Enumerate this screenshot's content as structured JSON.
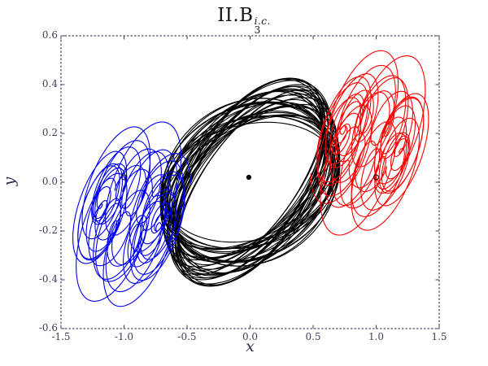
{
  "title": {
    "main": "II.B",
    "subscript": "3",
    "superscript": "i.c."
  },
  "chart_data": {
    "type": "line",
    "title": "II.B_3^{i.c.}",
    "xlabel": "x",
    "ylabel": "y",
    "xlim": [
      -1.5,
      1.5
    ],
    "ylim": [
      -0.6,
      0.6
    ],
    "xticks": [
      -1.5,
      -1.0,
      -0.5,
      0.0,
      0.5,
      1.0,
      1.5
    ],
    "xtick_labels": [
      "-1.5",
      "-1.0",
      "-0.5",
      "0.0",
      "0.5",
      "1.0",
      "1.5"
    ],
    "yticks": [
      -0.6,
      -0.4,
      -0.2,
      0.0,
      0.2,
      0.4,
      0.6
    ],
    "ytick_labels": [
      "-0.6",
      "-0.4",
      "-0.2",
      "0.0",
      "0.2",
      "0.4",
      "0.6"
    ],
    "grid": false,
    "legend": "none",
    "frame_style": "dashed",
    "frame_color": "#22223a",
    "tick_color": "#3f3f5c",
    "series": [
      {
        "name": "body2-trajectory-black",
        "color": "#000000",
        "line_width": 1.1,
        "pattern": "precessing-ellipse",
        "center": [
          0.0,
          0.0
        ],
        "loops": 40,
        "alpha": {
          "base": 0.29,
          "amp": 0.21,
          "freq": 0.381,
          "phase": 0.7
        },
        "semi_major": {
          "base": 0.67,
          "amp": 0.05,
          "freq": 0.618,
          "phase": 0.5
        },
        "semi_minor": {
          "base": 0.29,
          "amp": 0.05,
          "freq": 0.271,
          "phase": 2.1
        },
        "extent": {
          "x": [
            -0.69,
            0.68
          ],
          "y": [
            -0.34,
            0.35
          ]
        }
      },
      {
        "name": "body1-trajectory-blue",
        "color": "#0000ee",
        "line_width": 1.1,
        "pattern": "loop-rosette",
        "center": [
          -0.95,
          -0.13
        ],
        "mirror": false,
        "guide_radius": [
          0.26,
          0.15
        ],
        "loop_base": 0.13,
        "loop_mods": [
          {
            "amp": 0.075,
            "freq": 0.29,
            "phase": 1.3
          },
          {
            "amp": 0.04,
            "freq": 1.13,
            "phase": 0.4
          }
        ],
        "freq_ratio": 6.77,
        "slow_cycles": 6,
        "loop_phase": 0.6,
        "extent": {
          "x": [
            -1.44,
            -0.47
          ],
          "y": [
            -0.49,
            0.16
          ]
        }
      },
      {
        "name": "body3-trajectory-red",
        "color": "#ff0000",
        "line_width": 1.1,
        "pattern": "loop-rosette",
        "center": [
          0.96,
          0.16
        ],
        "mirror": true,
        "guide_radius": [
          0.26,
          0.15
        ],
        "loop_base": 0.13,
        "loop_mods": [
          {
            "amp": 0.075,
            "freq": 0.29,
            "phase": 1.3
          },
          {
            "amp": 0.04,
            "freq": 1.13,
            "phase": 0.4
          }
        ],
        "freq_ratio": 6.77,
        "slow_cycles": 6,
        "loop_phase": 0.6,
        "extent": {
          "x": [
            0.56,
            1.37
          ],
          "y": [
            -0.15,
            0.5
          ]
        }
      }
    ],
    "markers": [
      {
        "shape": "circle-open",
        "at": [
          -1.0,
          0.02
        ],
        "radius_px": 3,
        "color": "#000000"
      },
      {
        "shape": "circle-filled",
        "at": [
          -0.01,
          0.02
        ],
        "radius_px": 2.6,
        "color": "#000000"
      },
      {
        "shape": "circle-open",
        "at": [
          1.0,
          0.02
        ],
        "radius_px": 3,
        "color": "#000000"
      }
    ]
  },
  "colors": {
    "background": "#ffffff",
    "frame": "#22223a",
    "tick_text": "#3f3f5c",
    "title_text": "#141414",
    "body1": "#0000ee",
    "body2": "#000000",
    "body3": "#ff0000"
  }
}
